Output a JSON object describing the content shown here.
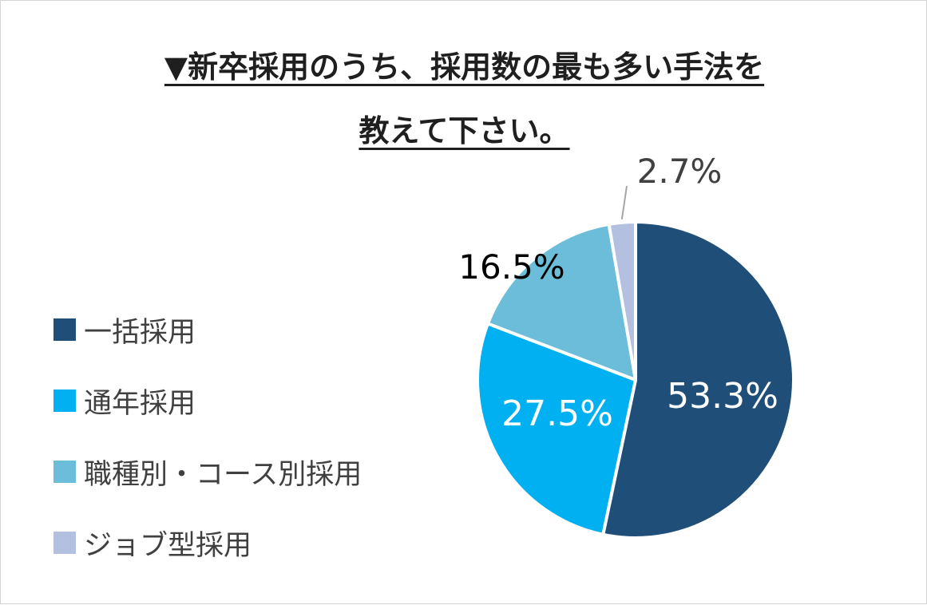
{
  "chart_data": {
    "type": "pie",
    "title_lines": [
      "▼新卒採用のうち、採用数の最も多い手法を",
      "教えて下さい。"
    ],
    "slices": [
      {
        "label": "一括採用",
        "value": 53.3,
        "display": "53.3%",
        "color": "#1f4e79",
        "label_color": "#ffffff"
      },
      {
        "label": "通年採用",
        "value": 27.5,
        "display": "27.5%",
        "color": "#00b0f0",
        "label_color": "#ffffff"
      },
      {
        "label": "職種別・コース別採用",
        "value": 16.5,
        "display": "16.5%",
        "color": "#6bbdd9",
        "label_color": "#000000"
      },
      {
        "label": "ジョブ型採用",
        "value": 2.7,
        "display": "2.7%",
        "color": "#b4c0df",
        "label_color": "#404040"
      }
    ],
    "start_angle_deg": 0,
    "direction": "clockwise",
    "legend_position": "left"
  }
}
